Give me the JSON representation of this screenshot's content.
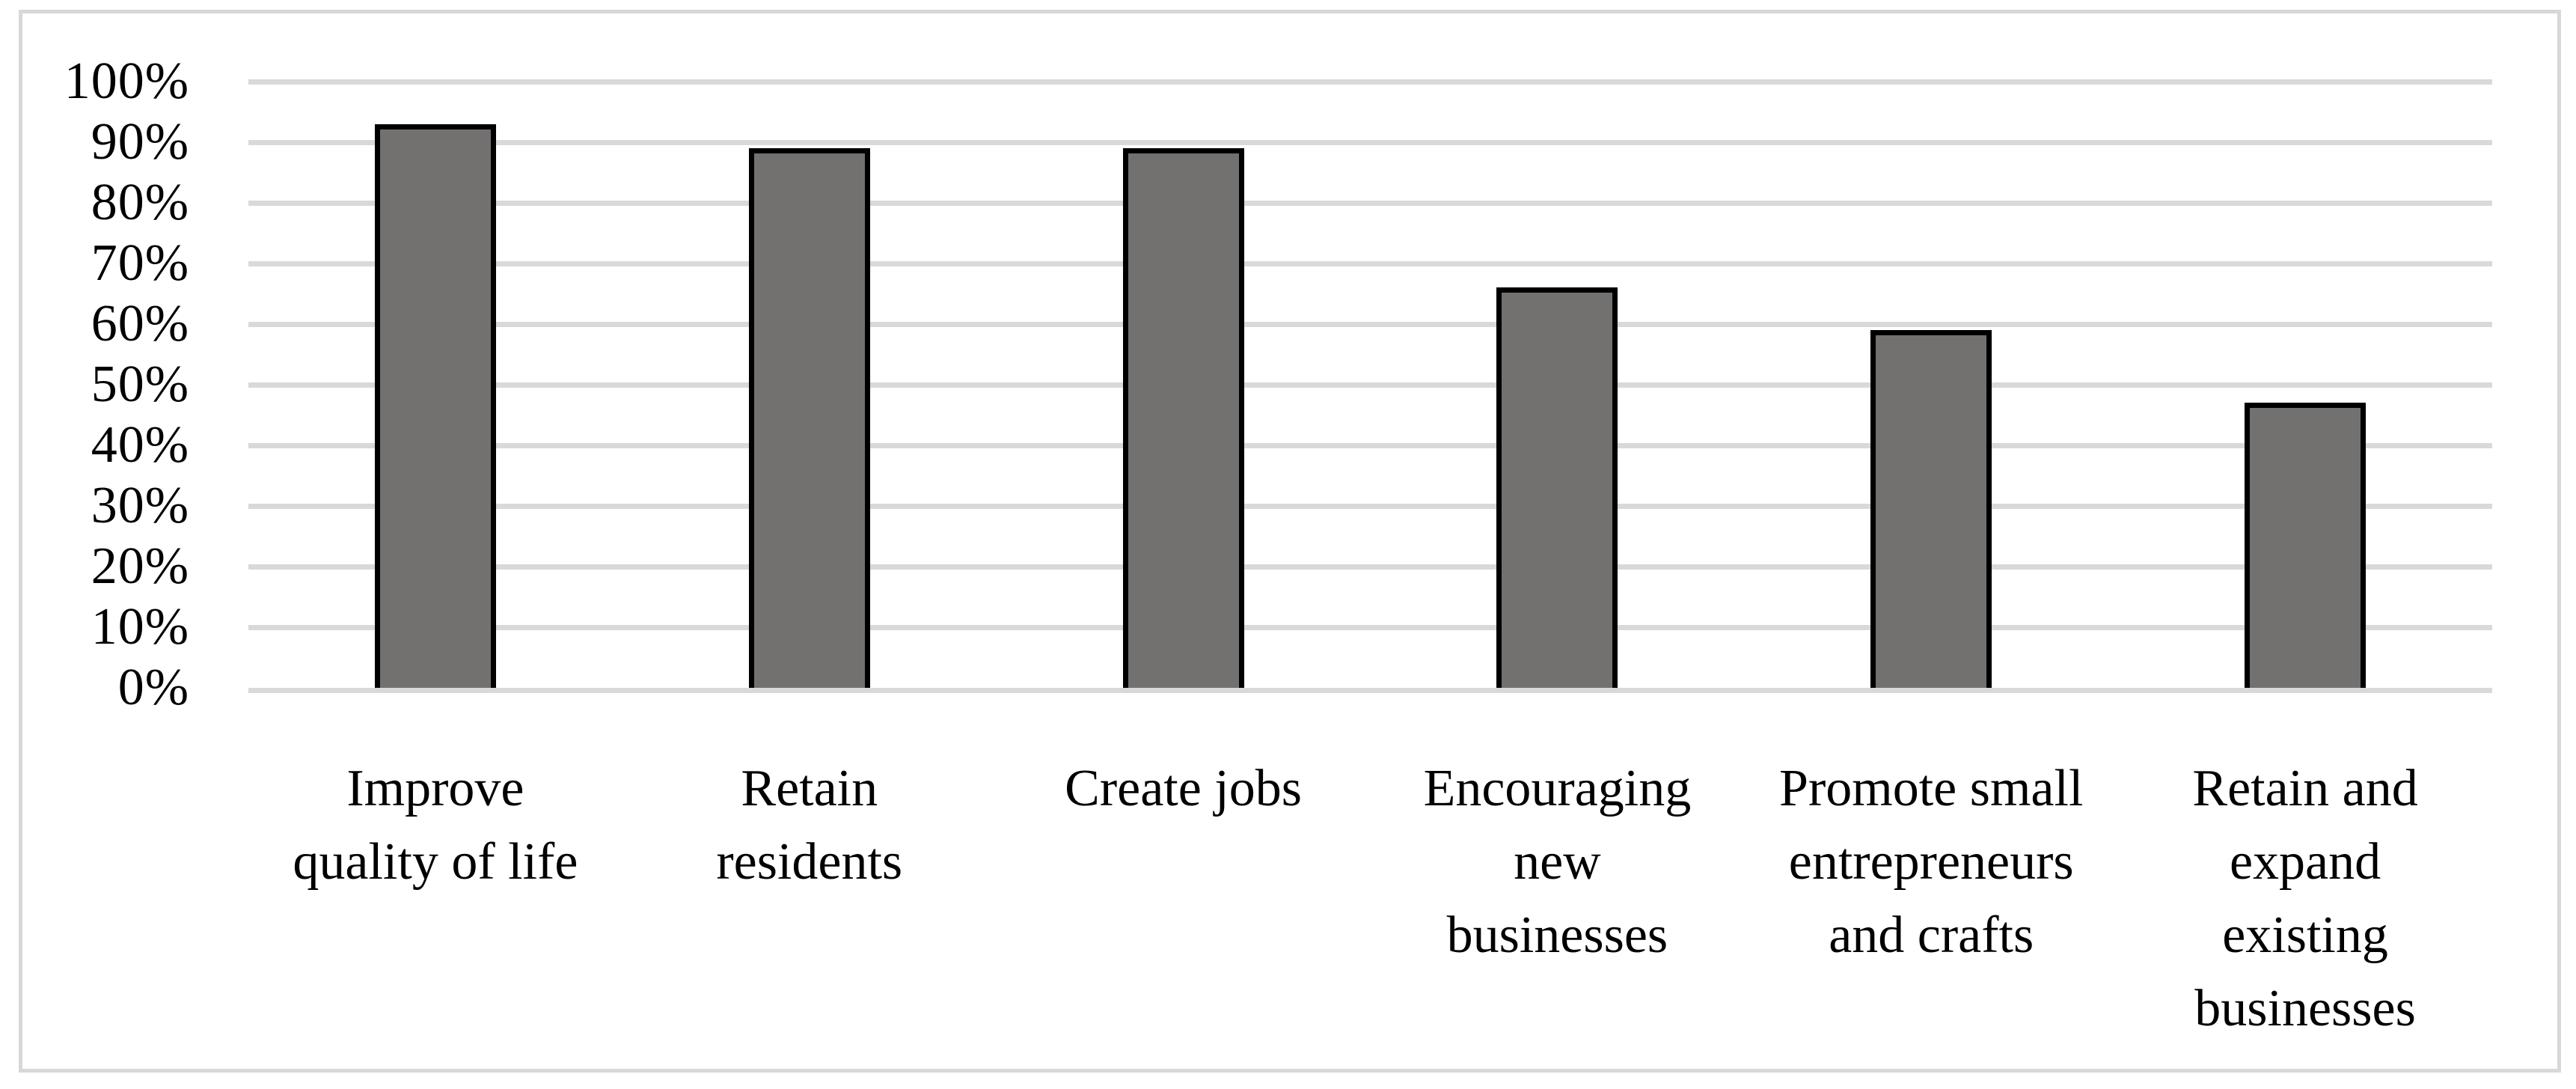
{
  "chart_data": {
    "type": "bar",
    "title": "",
    "xlabel": "",
    "ylabel": "",
    "categories": [
      "Improve quality of life",
      "Retain residents",
      "Create jobs",
      "Encouraging new businesses",
      "Promote small entrepreneurs and crafts",
      "Retain and expand existing businesses"
    ],
    "categories_wrapped": [
      "Improve\nquality of life",
      "Retain\nresidents",
      "Create jobs",
      "Encouraging\nnew\nbusinesses",
      "Promote small\nentrepreneurs\nand crafts",
      "Retain and\nexpand\nexisting\nbusinesses"
    ],
    "values": [
      93,
      89,
      89,
      66,
      59,
      47
    ],
    "value_unit": "%",
    "ylim": [
      0,
      100
    ],
    "ytick_step": 10,
    "yticks": [
      "0%",
      "10%",
      "20%",
      "30%",
      "40%",
      "50%",
      "60%",
      "70%",
      "80%",
      "90%",
      "100%"
    ],
    "grid": "horizontal",
    "legend": "none",
    "colors": {
      "bar_fill": "#737070",
      "bar_border": "#000000",
      "gridline": "#d9d9d9",
      "frame_border": "#d8d8d8",
      "background": "#ffffff",
      "text": "#000000"
    }
  }
}
